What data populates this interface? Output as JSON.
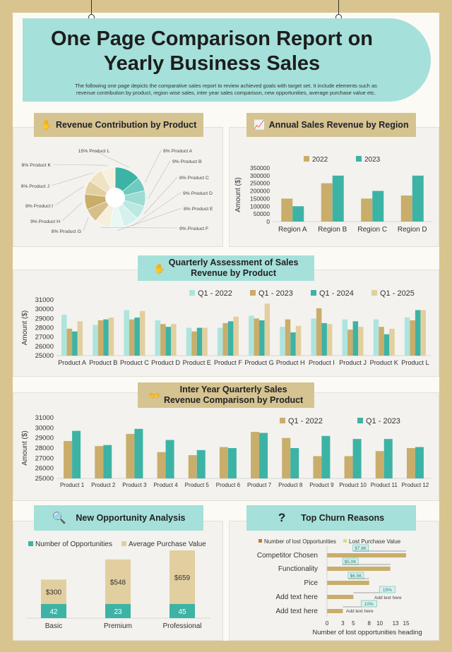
{
  "title": "One Page Comparison Report on Yearly Business Sales",
  "title_line1": "One Page Comparison Report on",
  "title_line2": "Yearly Business Sales",
  "subtitle_line1": "The following one page depicts the comparative sales report to review achieved goals with target set. It include elements such as",
  "subtitle_line2": "revenue contribution by product, region wise sales, inter year sales comparison, new opportunities, average purchase value etc.",
  "colors": {
    "teal": "#3db3a5",
    "gold": "#c9ad6b",
    "light_teal": "#a5e0da",
    "light_gold": "#e2cf9f"
  },
  "sections": {
    "revenue_contribution": "Revenue Contribution by Product",
    "annual_region": "Annual  Sales Revenue by Region",
    "quarterly_line1": "Quarterly Assessment of Sales",
    "quarterly_line2": "Revenue by Product",
    "interyear_line1": "Inter Year Quarterly Sales",
    "interyear_line2": "Revenue Comparison by Product",
    "opportunity": "New Opportunity Analysis",
    "churn": "Top Churn Reasons"
  },
  "icons": {
    "revenue": "hand-coins-icon",
    "region": "rising-chart-icon",
    "quarterly": "hand-coin-icon",
    "interyear": "money-hands-icon",
    "opportunity": "analysis-icon",
    "churn": "question-icon"
  },
  "chart_data": [
    {
      "id": "pie",
      "type": "pie",
      "title": "Revenue Contribution by Product",
      "labels": [
        "15% Product L",
        "8% Product A",
        "9% Product B",
        "8% Product C",
        "9% Product D",
        "8% Product E",
        "9% Product F",
        "8% Product G",
        "9% Product H",
        "8% Product I",
        "9% Product J",
        "8% Product K"
      ],
      "values": [
        15,
        8,
        9,
        8,
        9,
        8,
        9,
        8,
        9,
        8,
        9,
        8
      ]
    },
    {
      "id": "region",
      "type": "bar",
      "title": "Annual  Sales Revenue by Region",
      "categories": [
        "Region A",
        "Region B",
        "Region C",
        "Region D"
      ],
      "series": [
        {
          "name": "2022",
          "values": [
            150000,
            250000,
            150000,
            170000
          ]
        },
        {
          "name": "2023",
          "values": [
            100000,
            300000,
            200000,
            300000
          ]
        }
      ],
      "ylabel": "Amount  ($)",
      "yticks": [
        "0",
        "50000",
        "100000",
        "150000",
        "200000",
        "250000",
        "300000",
        "350000"
      ],
      "ylim": [
        0,
        350000
      ]
    },
    {
      "id": "quarterly",
      "type": "bar",
      "categories": [
        "Product A",
        "Product B",
        "Product C",
        "Product D",
        "Product E",
        "Product F",
        "Product G",
        "Product H",
        "Product I",
        "Product J",
        "Product K",
        "Product L"
      ],
      "series": [
        {
          "name": "Q1 - 2022",
          "values": [
            29400,
            28300,
            29900,
            28800,
            28000,
            28000,
            29300,
            28100,
            29000,
            28900,
            28900,
            29100
          ]
        },
        {
          "name": "Q1 - 2023",
          "values": [
            27900,
            28800,
            28900,
            28400,
            27600,
            28500,
            29000,
            28900,
            30100,
            27800,
            28100,
            28800
          ]
        },
        {
          "name": "Q1 - 2024",
          "values": [
            27600,
            28900,
            29100,
            28100,
            28000,
            28700,
            28800,
            27500,
            28500,
            28700,
            27300,
            29900
          ]
        },
        {
          "name": "Q1 - 2025",
          "values": [
            28700,
            29100,
            29800,
            28400,
            28000,
            29200,
            30600,
            28200,
            28400,
            28100,
            27900,
            29900
          ]
        }
      ],
      "ylabel": "Amount  ($)",
      "yticks": [
        "25000",
        "26000",
        "27000",
        "28000",
        "29000",
        "30000",
        "31000"
      ],
      "ylim": [
        25000,
        31000
      ]
    },
    {
      "id": "interyear",
      "type": "bar",
      "categories": [
        "Product 1",
        "Product 2",
        "Product 3",
        "Product 4",
        "Product 5",
        "Product 6",
        "Product 7",
        "Product 8",
        "Product 9",
        "Product 10",
        "Product 11",
        "Product 12"
      ],
      "series": [
        {
          "name": "Q1 - 2022",
          "values": [
            28700,
            28200,
            29400,
            27600,
            27300,
            28100,
            29600,
            29000,
            27200,
            27200,
            27700,
            28000
          ]
        },
        {
          "name": "Q1 - 2023",
          "values": [
            29700,
            28300,
            29900,
            28800,
            27800,
            28000,
            29500,
            28000,
            29200,
            28900,
            28900,
            28100
          ]
        }
      ],
      "ylabel": "Amount  ($)",
      "yticks": [
        "25000",
        "26000",
        "27000",
        "28000",
        "29000",
        "30000",
        "31000"
      ],
      "ylim": [
        25000,
        31000
      ]
    },
    {
      "id": "opportunity",
      "type": "bar",
      "stacked": true,
      "categories": [
        "Basic",
        "Premium",
        "Professional"
      ],
      "series": [
        {
          "name": "Number of Opportunities",
          "values": [
            42,
            23,
            45
          ]
        },
        {
          "name": "Average Purchase Value",
          "values": [
            300,
            548,
            659
          ],
          "labels": [
            "$300",
            "$548",
            "$659"
          ]
        }
      ]
    },
    {
      "id": "churn",
      "type": "bar",
      "orientation": "horizontal",
      "categories": [
        "Competitor Chosen",
        "Functionality",
        "Pice",
        "Add text here",
        "Add text here"
      ],
      "series": [
        {
          "name": "Number of lost Opportunities",
          "values": [
            15,
            12,
            8,
            5,
            3
          ]
        },
        {
          "name": "Lost Purchase Value",
          "values": [
            7.8,
            5.0,
            6.5,
            15,
            10
          ],
          "labels": [
            "$7.8K",
            "$5.0K",
            "$6.5K",
            "15%",
            "10%"
          ]
        }
      ],
      "annotations": [
        "Add text here",
        "Add text here"
      ],
      "xlabel": "Number of lost opportunities heading",
      "xticks": [
        "0",
        "3",
        "5",
        "8",
        "10",
        "13",
        "15"
      ],
      "xlim": [
        0,
        15
      ]
    }
  ]
}
